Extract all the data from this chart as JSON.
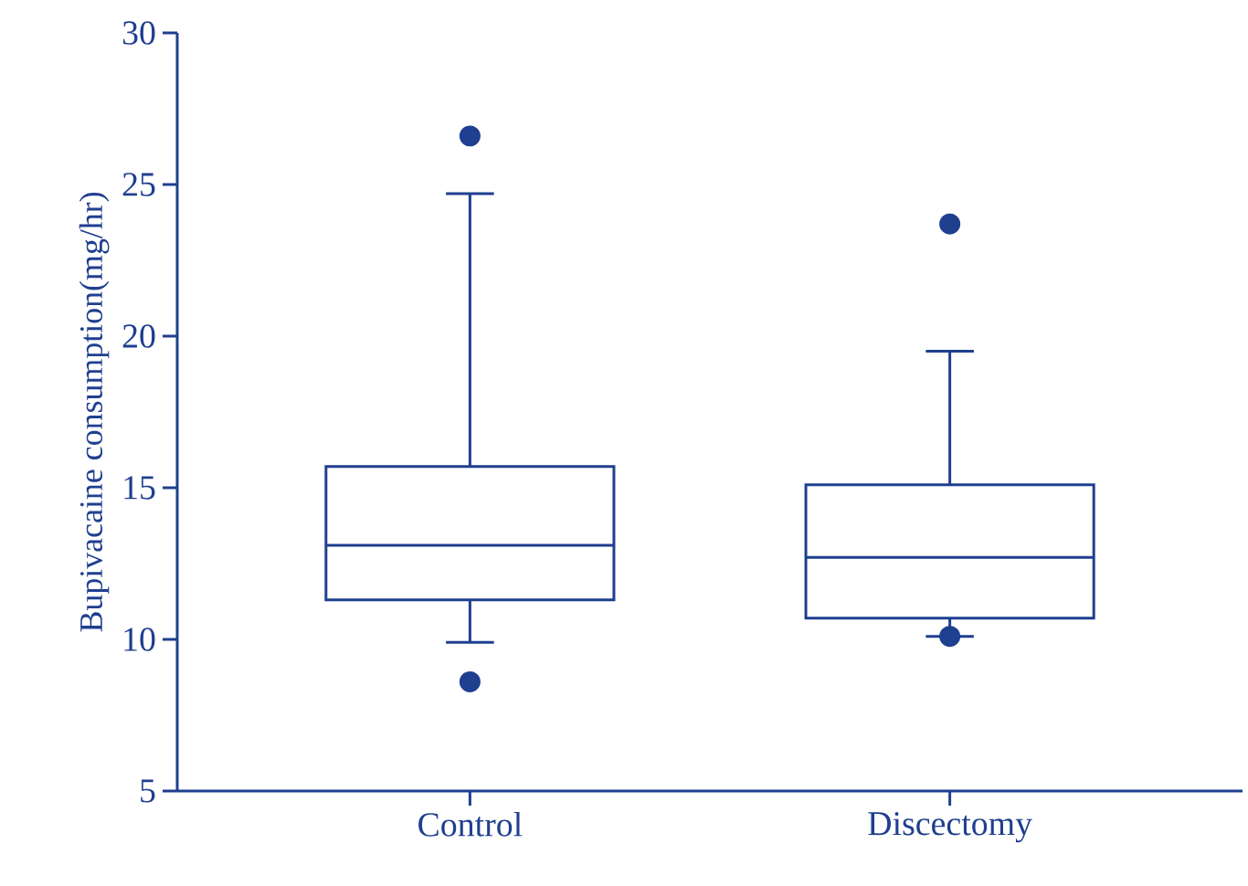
{
  "chart_data": {
    "type": "box",
    "ylabel": "Bupivacaine consumption(mg/hr)",
    "color": "#1f3f8f",
    "categories": [
      "Control",
      "Discectomy"
    ],
    "boxes": [
      {
        "low": 9.9,
        "q1": 11.3,
        "median": 13.1,
        "q3": 15.7,
        "high": 24.7,
        "outliers": [
          26.6,
          8.6
        ]
      },
      {
        "low": 10.1,
        "q1": 10.7,
        "median": 12.7,
        "q3": 15.1,
        "high": 19.5,
        "outliers": [
          23.7,
          10.1
        ]
      }
    ],
    "ylim": [
      5,
      30
    ],
    "yticks": [
      5,
      10,
      15,
      20,
      25,
      30
    ],
    "grid": false
  }
}
